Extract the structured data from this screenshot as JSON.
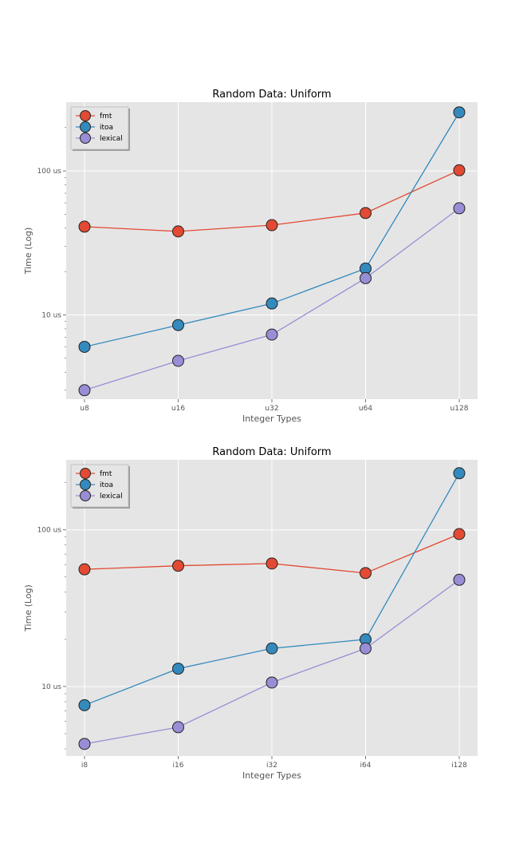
{
  "chart_data": [
    {
      "type": "line",
      "title": "Random Data: Uniform",
      "xlabel": "Integer Types",
      "ylabel": "Time (Log)",
      "categories": [
        "u8",
        "u16",
        "u32",
        "u64",
        "u128"
      ],
      "y_scale": "log",
      "ylim": [
        2.6,
        300
      ],
      "y_ticks": [
        {
          "value": 10,
          "label": "10 us"
        },
        {
          "value": 100,
          "label": "100 us"
        }
      ],
      "grid": true,
      "legend_position": "top-left",
      "series": [
        {
          "name": "fmt",
          "color": "#E24A33",
          "values": [
            41,
            38,
            42,
            51,
            101
          ]
        },
        {
          "name": "itoa",
          "color": "#348ABD",
          "values": [
            6.0,
            8.5,
            12,
            21,
            255
          ]
        },
        {
          "name": "lexical",
          "color": "#988ED5",
          "values": [
            3.0,
            4.8,
            7.3,
            18,
            55
          ]
        }
      ]
    },
    {
      "type": "line",
      "title": "Random Data: Uniform",
      "xlabel": "Integer Types",
      "ylabel": "Time (Log)",
      "categories": [
        "i8",
        "i16",
        "i32",
        "i64",
        "i128"
      ],
      "y_scale": "log",
      "ylim": [
        3.6,
        280
      ],
      "y_ticks": [
        {
          "value": 10,
          "label": "10 us"
        },
        {
          "value": 100,
          "label": "100 us"
        }
      ],
      "grid": true,
      "legend_position": "top-left",
      "series": [
        {
          "name": "fmt",
          "color": "#E24A33",
          "values": [
            56,
            59,
            61,
            53,
            94
          ]
        },
        {
          "name": "itoa",
          "color": "#348ABD",
          "values": [
            7.6,
            13,
            17.5,
            20,
            230
          ]
        },
        {
          "name": "lexical",
          "color": "#988ED5",
          "values": [
            4.3,
            5.5,
            10.6,
            17.5,
            48
          ]
        }
      ]
    }
  ]
}
